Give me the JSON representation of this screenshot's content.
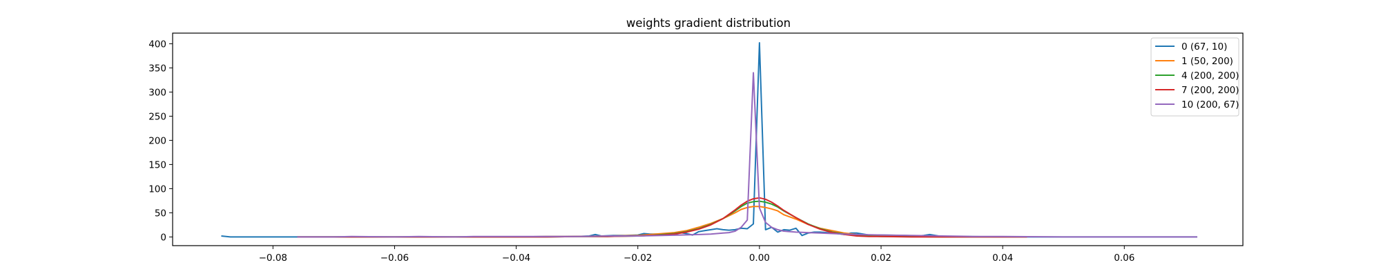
{
  "chart_data": {
    "type": "line",
    "title": "weights gradient distribution",
    "xlabel": "",
    "ylabel": "",
    "xlim": [
      -0.0965,
      0.0795
    ],
    "ylim": [
      -18,
      422
    ],
    "xticks": [
      -0.08,
      -0.06,
      -0.04,
      -0.02,
      0.0,
      0.02,
      0.04,
      0.06
    ],
    "xtick_labels": [
      "−0.08",
      "−0.06",
      "−0.04",
      "−0.02",
      "0.00",
      "0.02",
      "0.04",
      "0.06"
    ],
    "yticks": [
      0,
      50,
      100,
      150,
      200,
      250,
      300,
      350,
      400
    ],
    "ytick_labels": [
      "0",
      "50",
      "100",
      "150",
      "200",
      "250",
      "300",
      "350",
      "400"
    ],
    "grid": false,
    "legend_position": "top-right",
    "series": [
      {
        "name": "0 (67, 10)",
        "color": "#1f77b4",
        "x": [
          -0.0885,
          -0.087,
          -0.08,
          -0.07,
          -0.06,
          -0.05,
          -0.04,
          -0.035,
          -0.03,
          -0.028,
          -0.027,
          -0.026,
          -0.024,
          -0.022,
          -0.02,
          -0.019,
          -0.018,
          -0.016,
          -0.014,
          -0.013,
          -0.012,
          -0.011,
          -0.01,
          -0.009,
          -0.008,
          -0.007,
          -0.006,
          -0.005,
          -0.004,
          -0.003,
          -0.002,
          -0.001,
          0.0,
          0.001,
          0.002,
          0.003,
          0.004,
          0.005,
          0.006,
          0.007,
          0.008,
          0.009,
          0.01,
          0.012,
          0.014,
          0.015,
          0.016,
          0.018,
          0.02,
          0.024,
          0.026,
          0.027,
          0.028,
          0.03,
          0.034,
          0.04,
          0.05,
          0.06,
          0.07,
          0.072
        ],
        "y": [
          2,
          0,
          0,
          0,
          0,
          0,
          0,
          1,
          1,
          2,
          5,
          2,
          3,
          3,
          4,
          7,
          6,
          6,
          4,
          9,
          7,
          4,
          11,
          13,
          15,
          17,
          15,
          14,
          15,
          18,
          17,
          27,
          402,
          15,
          20,
          10,
          15,
          14,
          18,
          3,
          8,
          10,
          10,
          8,
          5,
          8,
          8,
          4,
          4,
          3,
          2,
          3,
          5,
          1,
          1,
          0,
          0,
          0,
          0,
          0
        ]
      },
      {
        "name": "1 (50, 200)",
        "color": "#ff7f0e",
        "x": [
          -0.076,
          -0.06,
          -0.05,
          -0.04,
          -0.035,
          -0.03,
          -0.025,
          -0.02,
          -0.018,
          -0.016,
          -0.014,
          -0.012,
          -0.01,
          -0.008,
          -0.006,
          -0.004,
          -0.003,
          -0.002,
          -0.001,
          0.0,
          0.001,
          0.002,
          0.003,
          0.004,
          0.006,
          0.008,
          0.01,
          0.012,
          0.014,
          0.016,
          0.018,
          0.02,
          0.025,
          0.03,
          0.035,
          0.04,
          0.044
        ],
        "y": [
          0,
          0,
          0,
          0,
          1,
          1,
          2,
          3,
          5,
          7,
          9,
          13,
          20,
          28,
          38,
          50,
          57,
          61,
          63,
          63,
          61,
          58,
          54,
          46,
          37,
          26,
          18,
          13,
          8,
          5,
          3,
          2,
          1,
          1,
          0,
          0,
          0
        ]
      },
      {
        "name": "4 (200, 200)",
        "color": "#2ca02c",
        "x": [
          -0.076,
          -0.06,
          -0.05,
          -0.04,
          -0.035,
          -0.03,
          -0.025,
          -0.02,
          -0.018,
          -0.016,
          -0.014,
          -0.012,
          -0.01,
          -0.008,
          -0.006,
          -0.004,
          -0.003,
          -0.002,
          -0.001,
          0.0,
          0.001,
          0.002,
          0.003,
          0.004,
          0.006,
          0.008,
          0.01,
          0.012,
          0.014,
          0.016,
          0.018,
          0.02,
          0.025,
          0.03,
          0.035,
          0.04,
          0.044
        ],
        "y": [
          0,
          0,
          0,
          0,
          0,
          1,
          1,
          2,
          3,
          5,
          7,
          11,
          17,
          26,
          38,
          54,
          63,
          70,
          73,
          74,
          72,
          68,
          62,
          54,
          40,
          27,
          17,
          10,
          6,
          3,
          2,
          1,
          1,
          0,
          0,
          0,
          0
        ]
      },
      {
        "name": "7 (200, 200)",
        "color": "#d62728",
        "x": [
          -0.076,
          -0.06,
          -0.05,
          -0.04,
          -0.035,
          -0.03,
          -0.025,
          -0.02,
          -0.018,
          -0.016,
          -0.014,
          -0.012,
          -0.01,
          -0.008,
          -0.006,
          -0.004,
          -0.003,
          -0.002,
          -0.001,
          0.0,
          0.001,
          0.002,
          0.003,
          0.004,
          0.006,
          0.008,
          0.01,
          0.012,
          0.014,
          0.016,
          0.018,
          0.02,
          0.025,
          0.03,
          0.035,
          0.04,
          0.044
        ],
        "y": [
          0,
          0,
          0,
          0,
          0,
          1,
          1,
          2,
          3,
          4,
          6,
          10,
          16,
          25,
          38,
          56,
          66,
          74,
          79,
          81,
          78,
          72,
          64,
          55,
          40,
          26,
          16,
          9,
          5,
          2,
          1,
          1,
          0,
          0,
          0,
          0,
          0
        ]
      },
      {
        "name": "10 (200, 67)",
        "color": "#9467bd",
        "x": [
          -0.076,
          -0.07,
          -0.067,
          -0.06,
          -0.056,
          -0.05,
          -0.047,
          -0.04,
          -0.035,
          -0.03,
          -0.025,
          -0.02,
          -0.016,
          -0.013,
          -0.01,
          -0.008,
          -0.006,
          -0.005,
          -0.004,
          -0.003,
          -0.002,
          -0.001,
          0.0,
          0.001,
          0.002,
          0.003,
          0.004,
          0.006,
          0.008,
          0.01,
          0.012,
          0.014,
          0.016,
          0.02,
          0.025,
          0.03,
          0.035,
          0.04,
          0.05,
          0.06,
          0.07,
          0.072
        ],
        "y": [
          0,
          0,
          1,
          0,
          1,
          0,
          1,
          1,
          1,
          1,
          2,
          2,
          3,
          4,
          5,
          6,
          8,
          9,
          12,
          20,
          35,
          340,
          60,
          30,
          20,
          15,
          12,
          10,
          9,
          8,
          7,
          6,
          5,
          4,
          3,
          2,
          1,
          1,
          0,
          0,
          0,
          0
        ]
      }
    ]
  }
}
